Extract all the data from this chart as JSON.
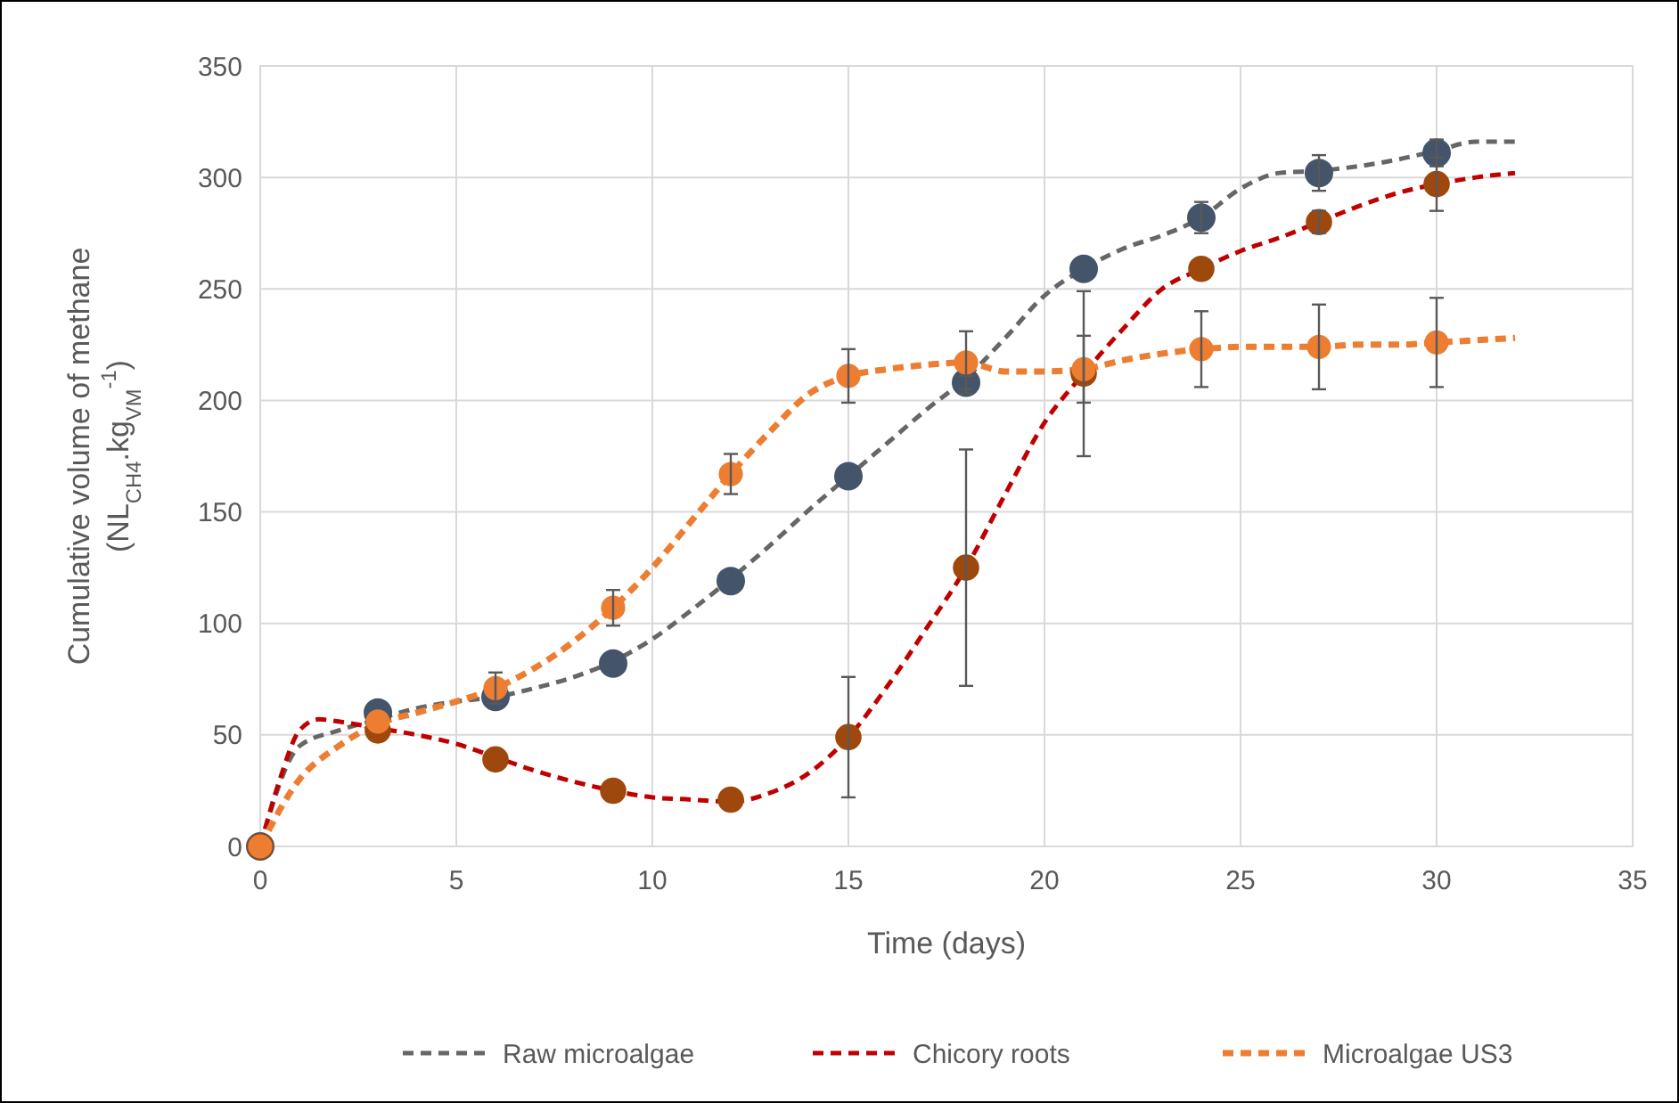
{
  "chart_data": {
    "type": "line",
    "xlabel": "Time (days)",
    "ylabel": "Cumulative volume of methane (NL$_{CH4}$.kg$_{VM}$$^{-1}$)",
    "xlim": [
      0,
      35
    ],
    "xticks": [
      0,
      5,
      10,
      15,
      20,
      25,
      30,
      35
    ],
    "ylim": [
      0,
      350
    ],
    "yticks": [
      0,
      50,
      100,
      150,
      200,
      250,
      300,
      350
    ],
    "grid": true,
    "legend": "bottom",
    "series": [
      {
        "name": "Raw microalgae",
        "color": "#666666",
        "line_style": "dashed",
        "x": [
          0,
          1,
          2,
          3,
          4,
          5,
          6,
          7,
          8,
          9,
          10,
          11,
          12,
          13,
          14,
          15,
          16,
          17,
          18,
          19,
          20,
          21,
          22,
          23,
          24,
          25,
          26,
          27,
          28,
          29,
          30,
          31,
          32
        ],
        "values": [
          0,
          45,
          52,
          57,
          62,
          65,
          67,
          71,
          76,
          83,
          93,
          106,
          120,
          135,
          151,
          166,
          181,
          196,
          210,
          228,
          247,
          259,
          268,
          274,
          282,
          295,
          302,
          303,
          305,
          308,
          312,
          316,
          316
        ]
      },
      {
        "name": "Chicory roots",
        "color": "#c00000",
        "line_style": "dashed",
        "x": [
          0,
          0.5,
          1,
          1.5,
          2,
          3,
          4,
          5,
          6,
          7,
          8,
          9,
          10,
          11,
          12,
          13,
          14,
          15,
          16,
          17,
          18,
          19,
          20,
          21,
          22,
          23,
          24,
          25,
          26,
          27,
          28,
          29,
          30,
          31,
          32
        ],
        "values": [
          0,
          30,
          52,
          57,
          56,
          53,
          50,
          46,
          40,
          34,
          29,
          25,
          22,
          21,
          20,
          24,
          33,
          49,
          72,
          98,
          125,
          158,
          190,
          212,
          232,
          250,
          259,
          267,
          273,
          280,
          287,
          293,
          297,
          300,
          302
        ]
      },
      {
        "name": "Microalgae US3",
        "color": "#ed7d31",
        "line_style": "dashed",
        "x": [
          0,
          1,
          2,
          3,
          4,
          5,
          6,
          7,
          8,
          9,
          10,
          11,
          12,
          13,
          14,
          15,
          16,
          17,
          18,
          19,
          20,
          21,
          22,
          23,
          24,
          25,
          26,
          27,
          28,
          29,
          30,
          31,
          32
        ],
        "values": [
          0,
          30,
          45,
          55,
          60,
          65,
          71,
          80,
          92,
          107,
          125,
          146,
          167,
          186,
          203,
          211,
          214,
          216,
          217,
          213,
          213,
          214,
          218,
          221,
          223,
          224,
          224,
          224,
          225,
          225,
          226,
          227,
          228
        ]
      },
      {
        "type": "scatter",
        "color": "#44546a",
        "marker": "circle",
        "x": [
          0,
          3,
          6,
          9,
          12,
          15,
          18,
          21,
          24,
          27,
          30
        ],
        "values": [
          0,
          60,
          67,
          82,
          119,
          166,
          208,
          259,
          282,
          302,
          311
        ],
        "errors": [
          null,
          null,
          null,
          null,
          null,
          null,
          3,
          null,
          7,
          8,
          6
        ]
      },
      {
        "type": "scatter",
        "color": "#9e480e",
        "marker": "circle",
        "x": [
          0,
          3,
          6,
          9,
          12,
          15,
          18,
          21,
          24,
          27,
          30
        ],
        "values": [
          0,
          52,
          39,
          25,
          21,
          49,
          125,
          212,
          259,
          280,
          297
        ],
        "errors": [
          null,
          null,
          null,
          null,
          null,
          27,
          53,
          37,
          null,
          5,
          12
        ]
      },
      {
        "type": "scatter",
        "color": "#ed7d31",
        "marker": "circle",
        "x": [
          0,
          3,
          6,
          9,
          12,
          15,
          18,
          21,
          24,
          27,
          30
        ],
        "values": [
          0,
          56,
          71,
          107,
          167,
          211,
          217,
          214,
          223,
          224,
          226
        ],
        "errors": [
          null,
          null,
          7,
          8,
          9,
          12,
          14,
          15,
          17,
          19,
          20
        ]
      }
    ]
  }
}
